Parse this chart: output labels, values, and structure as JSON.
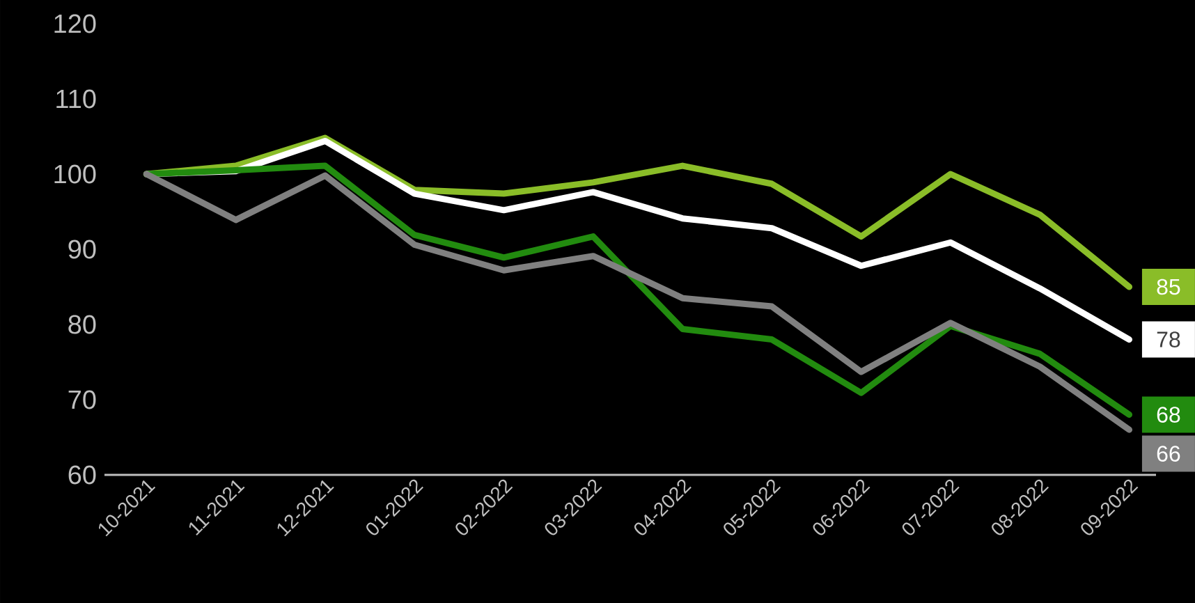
{
  "chart_data": {
    "type": "line",
    "categories": [
      "10-2021",
      "11-2021",
      "12-2021",
      "01-2022",
      "02-2022",
      "03-2022",
      "04-2022",
      "05-2022",
      "06-2022",
      "07-2022",
      "08-2022",
      "09-2022"
    ],
    "ylim": [
      60,
      120
    ],
    "yticks": [
      60,
      70,
      80,
      90,
      100,
      110,
      120
    ],
    "grid": false,
    "marker": "none",
    "line_style": "solid",
    "series": [
      {
        "color": "#8abd28",
        "values": [
          100,
          101.1,
          104.8,
          97.9,
          97.4,
          98.9,
          101.1,
          98.7,
          91.7,
          100,
          94.6,
          85
        ],
        "value_labels": [
          null,
          null,
          null,
          null,
          null,
          null,
          null,
          null,
          null,
          null,
          null,
          "85"
        ]
      },
      {
        "color": "#ffffff",
        "values": [
          100,
          100.4,
          104.4,
          97.4,
          95.2,
          97.6,
          94.1,
          92.8,
          87.8,
          90.9,
          84.8,
          78
        ],
        "value_labels": [
          null,
          null,
          null,
          null,
          null,
          null,
          null,
          null,
          null,
          null,
          null,
          "78"
        ]
      },
      {
        "color": "#228b0f",
        "values": [
          100,
          100.5,
          101.1,
          91.9,
          88.9,
          91.7,
          79.4,
          78,
          70.9,
          79.8,
          76.1,
          68
        ],
        "value_labels": [
          null,
          null,
          null,
          null,
          null,
          null,
          null,
          null,
          null,
          null,
          null,
          "68"
        ]
      },
      {
        "color": "#808080",
        "values": [
          100,
          93.9,
          99.8,
          90.6,
          87.2,
          89.1,
          83.5,
          82.4,
          73.7,
          80.2,
          74.4,
          66
        ],
        "value_labels": [
          null,
          null,
          null,
          null,
          null,
          null,
          null,
          null,
          null,
          null,
          null,
          "66"
        ]
      }
    ]
  }
}
